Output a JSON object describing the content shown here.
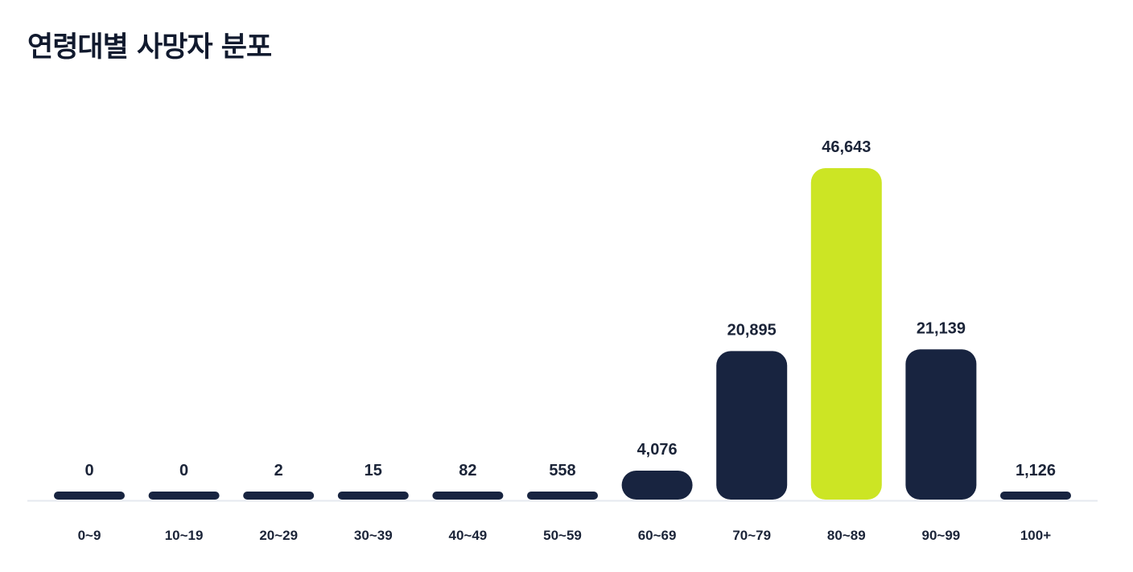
{
  "colors": {
    "bar": "#182440",
    "highlight": "#cce524",
    "baseline": "#e6e9ef",
    "text": "#1b2438"
  },
  "chart_data": {
    "type": "bar",
    "title": "연령대별 사망자 분포",
    "xlabel": "",
    "ylabel": "",
    "categories": [
      "0~9",
      "10~19",
      "20~29",
      "30~39",
      "40~49",
      "50~59",
      "60~69",
      "70~79",
      "80~89",
      "90~99",
      "100+"
    ],
    "values": [
      0,
      0,
      2,
      15,
      82,
      558,
      4076,
      20895,
      46643,
      21139,
      1126
    ],
    "value_labels": [
      "0",
      "0",
      "2",
      "15",
      "82",
      "558",
      "4,076",
      "20,895",
      "46,643",
      "21,139",
      "1,126"
    ],
    "highlight_category": "80~89",
    "ylim": [
      0,
      46643
    ],
    "grid": false,
    "legend": "none"
  }
}
